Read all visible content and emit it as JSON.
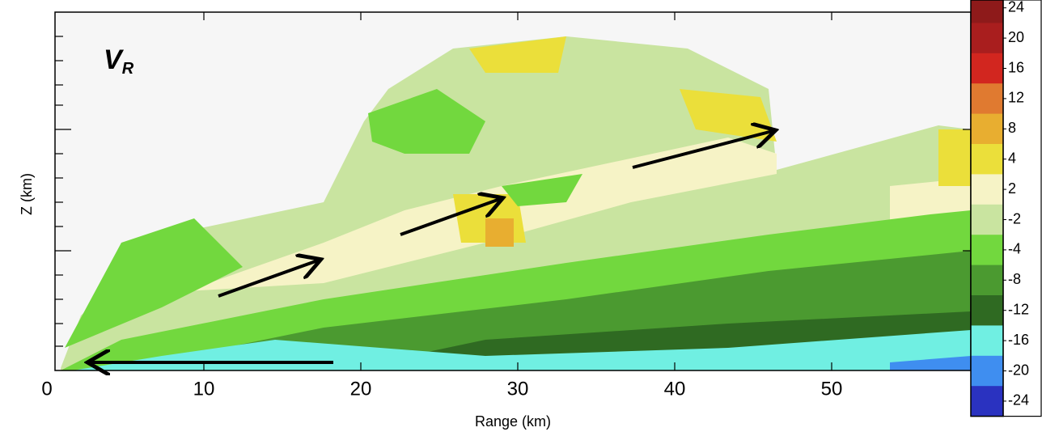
{
  "chart_data": {
    "type": "rhi",
    "annotation": "V",
    "annotation_sub": "R",
    "xlabel": "Range (km)",
    "ylabel": "Z (km)",
    "xlim": [
      0,
      58.5
    ],
    "xticks": [
      0,
      10,
      20,
      30,
      40,
      50
    ],
    "colorbar": {
      "ticks": [
        24,
        20,
        16,
        12,
        8,
        4,
        2,
        -2,
        -4,
        -8,
        -12,
        -16,
        -20,
        -24
      ],
      "colors": [
        "#8e1a1a",
        "#a91e1e",
        "#d2261f",
        "#e07a30",
        "#e8ae30",
        "#ebdf3a",
        "#f6f3c6",
        "#c9e4a0",
        "#72d83e",
        "#4b9a30",
        "#2f6a22",
        "#70efe2",
        "#3f8ef0",
        "#2a32c0"
      ]
    }
  }
}
